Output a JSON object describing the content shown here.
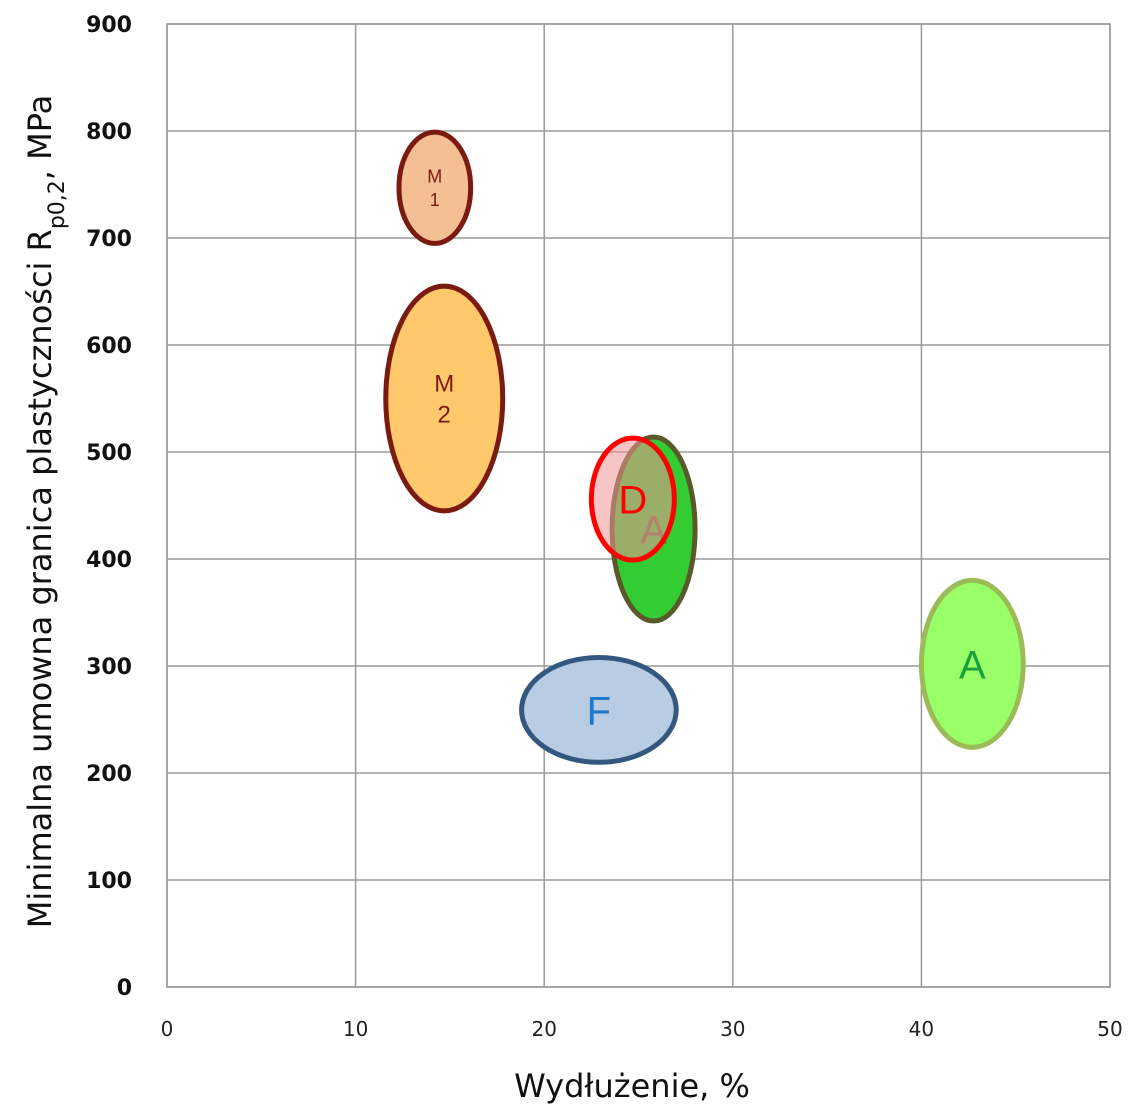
{
  "chart_data": {
    "type": "scatter",
    "xlabel": "Wydłużenie, %",
    "ylabel": {
      "main": "Minimalna umowna granica plastyczności R",
      "subscript": "p0,2",
      "suffix": ", MPa"
    },
    "xlim": [
      0,
      50
    ],
    "ylim": [
      0,
      900
    ],
    "x_ticks": [
      0,
      10,
      20,
      30,
      40,
      50
    ],
    "y_ticks": [
      0,
      100,
      200,
      300,
      400,
      500,
      600,
      700,
      800,
      900
    ],
    "grid": true,
    "regions": [
      {
        "id": "m2",
        "label_lines": [
          "M",
          "2"
        ],
        "cx": 14.7,
        "cy": 550,
        "rx": 3.1,
        "ry": 105,
        "fill": "#ffc86b",
        "stroke": "#7b1a10",
        "text_color": "#7b1a10",
        "label_size": 24
      },
      {
        "id": "m1",
        "label_lines": [
          "M",
          "1"
        ],
        "cx": 14.2,
        "cy": 747,
        "rx": 1.9,
        "ry": 52,
        "fill": "#f5bf95",
        "stroke": "#7b1a10",
        "text_color": "#7b1a10",
        "label_size": 18
      },
      {
        "id": "f",
        "label_lines": [
          "F"
        ],
        "cx": 22.9,
        "cy": 259,
        "rx": 4.1,
        "ry": 49,
        "fill": "#b8cce4",
        "stroke": "#34577f",
        "text_color": "#1f78c8",
        "label_size": 40
      },
      {
        "id": "a-center",
        "label_lines": [
          "A"
        ],
        "cx": 25.8,
        "cy": 428,
        "rx": 2.2,
        "ry": 86,
        "fill": "#33cc33",
        "stroke": "#59592a",
        "text_color": "#6b6b3a",
        "label_size": 40
      },
      {
        "id": "d",
        "label_lines": [
          "D"
        ],
        "cx": 24.7,
        "cy": 456,
        "rx": 2.2,
        "ry": 57,
        "fill": "rgba(240,150,150,0.55)",
        "stroke": "#ff0000",
        "text_color": "#ff0000",
        "label_size": 40
      },
      {
        "id": "a-right",
        "label_lines": [
          "A"
        ],
        "cx": 42.7,
        "cy": 302,
        "rx": 2.7,
        "ry": 78,
        "fill": "#99ff66",
        "stroke": "#9bbb59",
        "text_color": "#1b9e3e",
        "label_size": 40
      }
    ]
  }
}
